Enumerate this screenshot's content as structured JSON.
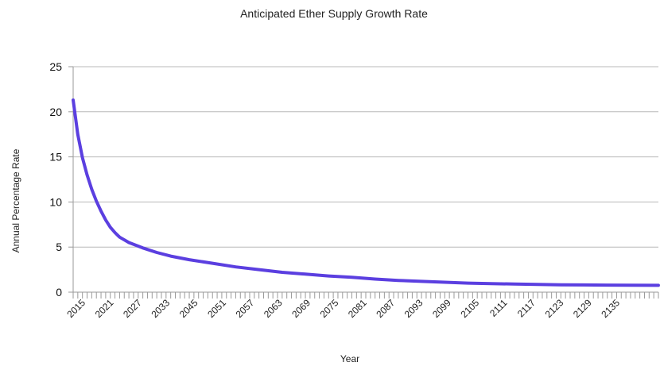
{
  "chart_data": {
    "type": "line",
    "title": "Anticipated Ether Supply Growth Rate",
    "xlabel": "Year",
    "ylabel": "Annual Percentage Rate",
    "ylim": [
      0,
      25
    ],
    "yticks": [
      0,
      5,
      10,
      15,
      20,
      25
    ],
    "xlim": [
      2015,
      2141
    ],
    "xticks": [
      2015,
      2021,
      2027,
      2033,
      2045,
      2051,
      2057,
      2063,
      2069,
      2075,
      2081,
      2087,
      2093,
      2099,
      2105,
      2111,
      2117,
      2123,
      2129,
      2135
    ],
    "grid": true,
    "legend": "none",
    "colors": {
      "series": "#5b3fe0",
      "grid": "#b8b8b8",
      "axis": "#9a9a9a"
    },
    "series": [
      {
        "x": [
          2015,
          2016,
          2017,
          2018,
          2019,
          2020,
          2021,
          2022,
          2023,
          2024,
          2025,
          2027,
          2030,
          2033,
          2036,
          2040,
          2045,
          2050,
          2055,
          2060,
          2065,
          2070,
          2075,
          2080,
          2085,
          2090,
          2095,
          2100,
          2105,
          2110,
          2115,
          2120,
          2125,
          2130,
          2135,
          2141
        ],
        "values": [
          21.3,
          17.5,
          14.9,
          13.0,
          11.4,
          10.1,
          9.0,
          8.0,
          7.2,
          6.6,
          6.1,
          5.5,
          4.9,
          4.4,
          4.0,
          3.6,
          3.2,
          2.8,
          2.5,
          2.2,
          2.0,
          1.8,
          1.65,
          1.45,
          1.3,
          1.2,
          1.1,
          1.0,
          0.95,
          0.9,
          0.85,
          0.82,
          0.8,
          0.78,
          0.77,
          0.76
        ]
      }
    ]
  }
}
